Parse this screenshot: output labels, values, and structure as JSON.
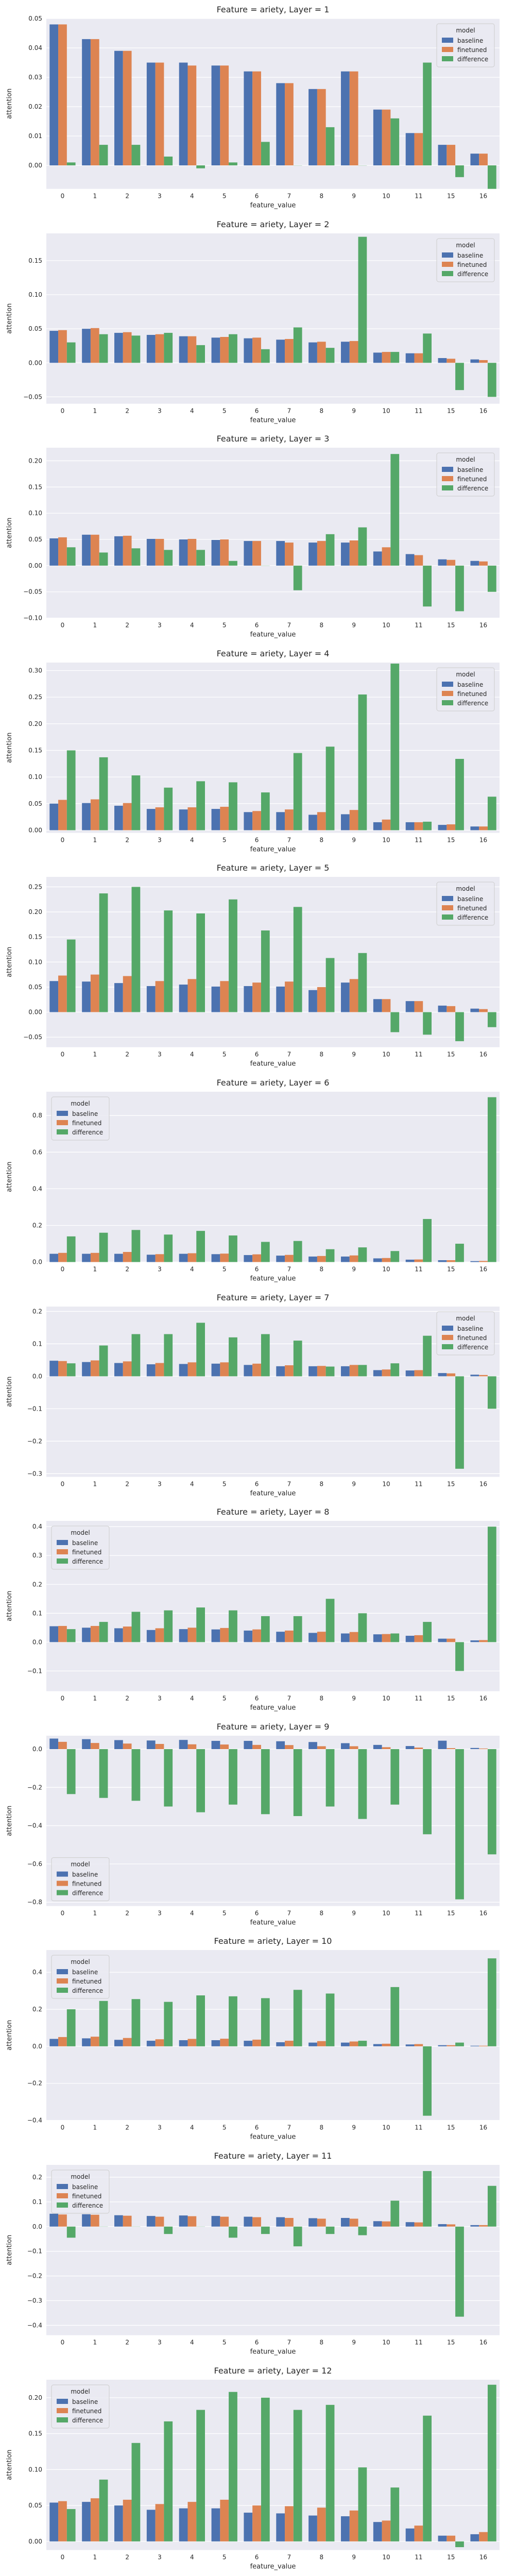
{
  "chart_data": {
    "type": "bar",
    "x": [
      "0",
      "1",
      "2",
      "3",
      "4",
      "5",
      "6",
      "7",
      "8",
      "9",
      "10",
      "11",
      "15",
      "16"
    ],
    "xlabel": "feature_value",
    "ylabel": "attention",
    "legend": {
      "title": "model",
      "entries": [
        "baseline",
        "finetuned",
        "difference"
      ]
    },
    "colors": {
      "baseline": "#4c72b0",
      "finetuned": "#dd8452",
      "difference": "#55a868"
    },
    "facets": [
      {
        "title": "Feature = ariety, Layer = 1",
        "ylim": [
          -0.008,
          0.05
        ],
        "yticks": [
          0.0,
          0.01,
          0.02,
          0.03,
          0.04,
          0.05
        ],
        "ytick_labels": [
          "0.00",
          "0.01",
          "0.02",
          "0.03",
          "0.04",
          "0.05"
        ],
        "legend_position": "top-right",
        "series": [
          {
            "name": "baseline",
            "values": [
              0.048,
              0.043,
              0.039,
              0.035,
              0.035,
              0.034,
              0.032,
              0.028,
              0.026,
              0.032,
              0.019,
              0.011,
              0.007,
              0.004
            ]
          },
          {
            "name": "finetuned",
            "values": [
              0.048,
              0.043,
              0.039,
              0.035,
              0.034,
              0.034,
              0.032,
              0.028,
              0.026,
              0.032,
              0.019,
              0.011,
              0.007,
              0.004
            ]
          },
          {
            "name": "difference",
            "values": [
              0.001,
              0.007,
              0.007,
              0.003,
              -0.001,
              0.001,
              0.008,
              0.0,
              0.013,
              0.0,
              0.016,
              0.035,
              -0.004,
              -0.008
            ]
          }
        ]
      },
      {
        "title": "Feature = ariety, Layer = 2",
        "ylim": [
          -0.06,
          0.19
        ],
        "yticks": [
          -0.05,
          0.0,
          0.05,
          0.1,
          0.15
        ],
        "ytick_labels": [
          "−0.05",
          "0.00",
          "0.05",
          "0.10",
          "0.15"
        ],
        "legend_position": "top-right",
        "series": [
          {
            "name": "baseline",
            "values": [
              0.047,
              0.05,
              0.044,
              0.041,
              0.039,
              0.037,
              0.036,
              0.034,
              0.03,
              0.031,
              0.015,
              0.014,
              0.007,
              0.005
            ]
          },
          {
            "name": "finetuned",
            "values": [
              0.048,
              0.051,
              0.045,
              0.042,
              0.039,
              0.038,
              0.037,
              0.035,
              0.031,
              0.032,
              0.016,
              0.014,
              0.006,
              0.004
            ]
          },
          {
            "name": "difference",
            "values": [
              0.03,
              0.042,
              0.04,
              0.044,
              0.026,
              0.042,
              0.02,
              0.052,
              0.022,
              0.185,
              0.016,
              0.043,
              -0.04,
              -0.05
            ]
          }
        ]
      },
      {
        "title": "Feature = ariety, Layer = 3",
        "ylim": [
          -0.1,
          0.225
        ],
        "yticks": [
          -0.1,
          -0.05,
          0.0,
          0.05,
          0.1,
          0.15,
          0.2
        ],
        "ytick_labels": [
          "−0.10",
          "−0.05",
          "0.00",
          "0.05",
          "0.10",
          "0.15",
          "0.20"
        ],
        "legend_position": "top-right",
        "series": [
          {
            "name": "baseline",
            "values": [
              0.052,
              0.059,
              0.056,
              0.051,
              0.05,
              0.049,
              0.047,
              0.047,
              0.044,
              0.044,
              0.027,
              0.022,
              0.012,
              0.009
            ]
          },
          {
            "name": "finetuned",
            "values": [
              0.054,
              0.059,
              0.057,
              0.051,
              0.051,
              0.05,
              0.047,
              0.044,
              0.047,
              0.048,
              0.035,
              0.02,
              0.011,
              0.008
            ]
          },
          {
            "name": "difference",
            "values": [
              0.035,
              0.025,
              0.033,
              0.03,
              0.03,
              0.009,
              0.0,
              -0.047,
              0.06,
              0.073,
              0.213,
              -0.078,
              -0.087,
              -0.05
            ]
          }
        ]
      },
      {
        "title": "Feature = ariety, Layer = 4",
        "ylim": [
          -0.005,
          0.315
        ],
        "yticks": [
          0.0,
          0.05,
          0.1,
          0.15,
          0.2,
          0.25,
          0.3
        ],
        "ytick_labels": [
          "0.00",
          "0.05",
          "0.10",
          "0.15",
          "0.20",
          "0.25",
          "0.30"
        ],
        "legend_position": "top-right",
        "series": [
          {
            "name": "baseline",
            "values": [
              0.05,
              0.051,
              0.046,
              0.04,
              0.039,
              0.04,
              0.034,
              0.034,
              0.029,
              0.03,
              0.015,
              0.015,
              0.01,
              0.007
            ]
          },
          {
            "name": "finetuned",
            "values": [
              0.057,
              0.058,
              0.051,
              0.043,
              0.043,
              0.044,
              0.036,
              0.039,
              0.034,
              0.038,
              0.02,
              0.015,
              0.011,
              0.007
            ]
          },
          {
            "name": "difference",
            "values": [
              0.15,
              0.137,
              0.103,
              0.08,
              0.092,
              0.09,
              0.071,
              0.145,
              0.157,
              0.255,
              0.313,
              0.016,
              0.134,
              0.063
            ]
          }
        ]
      },
      {
        "title": "Feature = ariety, Layer = 5",
        "ylim": [
          -0.07,
          0.27
        ],
        "yticks": [
          -0.05,
          0.0,
          0.05,
          0.1,
          0.15,
          0.2,
          0.25
        ],
        "ytick_labels": [
          "−0.05",
          "0.00",
          "0.05",
          "0.10",
          "0.15",
          "0.20",
          "0.25"
        ],
        "legend_position": "top-right",
        "series": [
          {
            "name": "baseline",
            "values": [
              0.062,
              0.061,
              0.058,
              0.052,
              0.055,
              0.051,
              0.052,
              0.051,
              0.044,
              0.059,
              0.026,
              0.022,
              0.013,
              0.007
            ]
          },
          {
            "name": "finetuned",
            "values": [
              0.073,
              0.075,
              0.072,
              0.062,
              0.066,
              0.062,
              0.059,
              0.061,
              0.05,
              0.066,
              0.026,
              0.022,
              0.012,
              0.006
            ]
          },
          {
            "name": "difference",
            "values": [
              0.145,
              0.237,
              0.25,
              0.203,
              0.197,
              0.225,
              0.163,
              0.21,
              0.108,
              0.118,
              -0.04,
              -0.045,
              -0.058,
              -0.03
            ]
          }
        ]
      },
      {
        "title": "Feature = ariety, Layer = 6",
        "ylim": [
          0.0,
          0.93
        ],
        "yticks": [
          0.0,
          0.2,
          0.4,
          0.6,
          0.8
        ],
        "ytick_labels": [
          "0.0",
          "0.2",
          "0.4",
          "0.6",
          "0.8"
        ],
        "legend_position": "top-left",
        "series": [
          {
            "name": "baseline",
            "values": [
              0.045,
              0.045,
              0.045,
              0.04,
              0.045,
              0.043,
              0.038,
              0.035,
              0.03,
              0.03,
              0.02,
              0.013,
              0.01,
              0.005
            ]
          },
          {
            "name": "finetuned",
            "values": [
              0.05,
              0.05,
              0.055,
              0.043,
              0.048,
              0.046,
              0.042,
              0.039,
              0.033,
              0.036,
              0.022,
              0.014,
              0.01,
              0.006
            ]
          },
          {
            "name": "difference",
            "values": [
              0.14,
              0.16,
              0.175,
              0.15,
              0.17,
              0.145,
              0.11,
              0.115,
              0.07,
              0.08,
              0.06,
              0.235,
              0.1,
              0.9
            ]
          }
        ]
      },
      {
        "title": "Feature = ariety, Layer = 7",
        "ylim": [
          -0.31,
          0.215
        ],
        "yticks": [
          -0.3,
          -0.2,
          -0.1,
          0.0,
          0.1,
          0.2
        ],
        "ytick_labels": [
          "−0.3",
          "−0.2",
          "−0.1",
          "0.0",
          "0.1",
          "0.2"
        ],
        "legend_position": "top-right",
        "series": [
          {
            "name": "baseline",
            "values": [
              0.048,
              0.044,
              0.041,
              0.037,
              0.038,
              0.039,
              0.035,
              0.031,
              0.031,
              0.031,
              0.019,
              0.018,
              0.01,
              0.005
            ]
          },
          {
            "name": "finetuned",
            "values": [
              0.047,
              0.049,
              0.046,
              0.041,
              0.043,
              0.043,
              0.039,
              0.034,
              0.032,
              0.035,
              0.021,
              0.019,
              0.009,
              0.004
            ]
          },
          {
            "name": "difference",
            "values": [
              0.04,
              0.095,
              0.13,
              0.13,
              0.165,
              0.12,
              0.13,
              0.11,
              0.03,
              0.035,
              0.04,
              0.125,
              -0.285,
              -0.1
            ]
          }
        ]
      },
      {
        "title": "Feature = ariety, Layer = 8",
        "ylim": [
          -0.17,
          0.42
        ],
        "yticks": [
          -0.1,
          0.0,
          0.1,
          0.2,
          0.3,
          0.4
        ],
        "ytick_labels": [
          "−0.1",
          "0.0",
          "0.1",
          "0.2",
          "0.3",
          "0.4"
        ],
        "legend_position": "top-left",
        "series": [
          {
            "name": "baseline",
            "values": [
              0.055,
              0.05,
              0.048,
              0.042,
              0.045,
              0.044,
              0.04,
              0.036,
              0.032,
              0.03,
              0.027,
              0.022,
              0.012,
              0.006
            ]
          },
          {
            "name": "finetuned",
            "values": [
              0.056,
              0.056,
              0.054,
              0.048,
              0.05,
              0.049,
              0.044,
              0.04,
              0.036,
              0.035,
              0.028,
              0.024,
              0.012,
              0.007
            ]
          },
          {
            "name": "difference",
            "values": [
              0.045,
              0.07,
              0.105,
              0.11,
              0.12,
              0.11,
              0.09,
              0.09,
              0.15,
              0.1,
              0.03,
              0.07,
              -0.1,
              0.4
            ]
          }
        ]
      },
      {
        "title": "Feature = ariety, Layer = 9",
        "ylim": [
          -0.82,
          0.07
        ],
        "yticks": [
          -0.8,
          -0.6,
          -0.4,
          -0.2,
          0.0
        ],
        "ytick_labels": [
          "−0.8",
          "−0.6",
          "−0.4",
          "−0.2",
          "0.0"
        ],
        "legend_position": "bottom-left",
        "series": [
          {
            "name": "baseline",
            "values": [
              0.055,
              0.052,
              0.047,
              0.045,
              0.048,
              0.043,
              0.043,
              0.041,
              0.037,
              0.031,
              0.022,
              0.016,
              0.044,
              0.006
            ]
          },
          {
            "name": "finetuned",
            "values": [
              0.038,
              0.032,
              0.029,
              0.027,
              0.025,
              0.024,
              0.022,
              0.021,
              0.015,
              0.015,
              0.01,
              0.008,
              0.005,
              0.003
            ]
          },
          {
            "name": "difference",
            "values": [
              -0.235,
              -0.255,
              -0.27,
              -0.3,
              -0.33,
              -0.29,
              -0.34,
              -0.35,
              -0.3,
              -0.365,
              -0.29,
              -0.445,
              -0.785,
              -0.55
            ]
          }
        ]
      },
      {
        "title": "Feature = ariety, Layer = 10",
        "ylim": [
          -0.4,
          0.52
        ],
        "yticks": [
          -0.4,
          -0.2,
          0.0,
          0.2,
          0.4
        ],
        "ytick_labels": [
          "−0.4",
          "−0.2",
          "0.0",
          "0.2",
          "0.4"
        ],
        "legend_position": "top-left",
        "series": [
          {
            "name": "baseline",
            "values": [
              0.04,
              0.043,
              0.035,
              0.03,
              0.033,
              0.033,
              0.03,
              0.022,
              0.02,
              0.02,
              0.012,
              0.01,
              0.006,
              0.003
            ]
          },
          {
            "name": "finetuned",
            "values": [
              0.05,
              0.052,
              0.045,
              0.038,
              0.04,
              0.041,
              0.036,
              0.03,
              0.028,
              0.026,
              0.014,
              0.012,
              0.006,
              0.003
            ]
          },
          {
            "name": "difference",
            "values": [
              0.2,
              0.245,
              0.255,
              0.24,
              0.275,
              0.27,
              0.26,
              0.305,
              0.285,
              0.03,
              0.32,
              -0.375,
              0.02,
              0.475
            ]
          }
        ]
      },
      {
        "title": "Feature = ariety, Layer = 11",
        "ylim": [
          -0.44,
          0.25
        ],
        "yticks": [
          -0.4,
          -0.3,
          -0.2,
          -0.1,
          0.0,
          0.1,
          0.2
        ],
        "ytick_labels": [
          "−0.4",
          "−0.3",
          "−0.2",
          "−0.1",
          "0.0",
          "0.1",
          "0.2"
        ],
        "legend_position": "top-left",
        "series": [
          {
            "name": "baseline",
            "values": [
              0.052,
              0.05,
              0.046,
              0.043,
              0.045,
              0.043,
              0.04,
              0.038,
              0.034,
              0.035,
              0.022,
              0.018,
              0.01,
              0.006
            ]
          },
          {
            "name": "finetuned",
            "values": [
              0.049,
              0.048,
              0.044,
              0.04,
              0.042,
              0.04,
              0.038,
              0.035,
              0.032,
              0.032,
              0.021,
              0.017,
              0.009,
              0.006
            ]
          },
          {
            "name": "difference",
            "values": [
              -0.045,
              0.0,
              0.0,
              -0.03,
              0.0,
              -0.045,
              -0.03,
              -0.08,
              -0.03,
              -0.035,
              0.105,
              0.225,
              -0.365,
              0.165
            ]
          }
        ]
      },
      {
        "title": "Feature = ariety, Layer = 12",
        "ylim": [
          -0.012,
          0.225
        ],
        "yticks": [
          0.0,
          0.05,
          0.1,
          0.15,
          0.2
        ],
        "ytick_labels": [
          "0.00",
          "0.05",
          "0.10",
          "0.15",
          "0.20"
        ],
        "legend_position": "top-left",
        "series": [
          {
            "name": "baseline",
            "values": [
              0.054,
              0.055,
              0.05,
              0.044,
              0.046,
              0.046,
              0.04,
              0.039,
              0.036,
              0.035,
              0.027,
              0.018,
              0.008,
              0.01
            ]
          },
          {
            "name": "finetuned",
            "values": [
              0.056,
              0.06,
              0.058,
              0.052,
              0.055,
              0.058,
              0.05,
              0.049,
              0.047,
              0.043,
              0.029,
              0.022,
              0.008,
              0.013
            ]
          },
          {
            "name": "difference",
            "values": [
              0.045,
              0.086,
              0.137,
              0.167,
              0.183,
              0.208,
              0.2,
              0.183,
              0.19,
              0.103,
              0.075,
              0.175,
              -0.008,
              0.218
            ]
          }
        ]
      }
    ]
  }
}
